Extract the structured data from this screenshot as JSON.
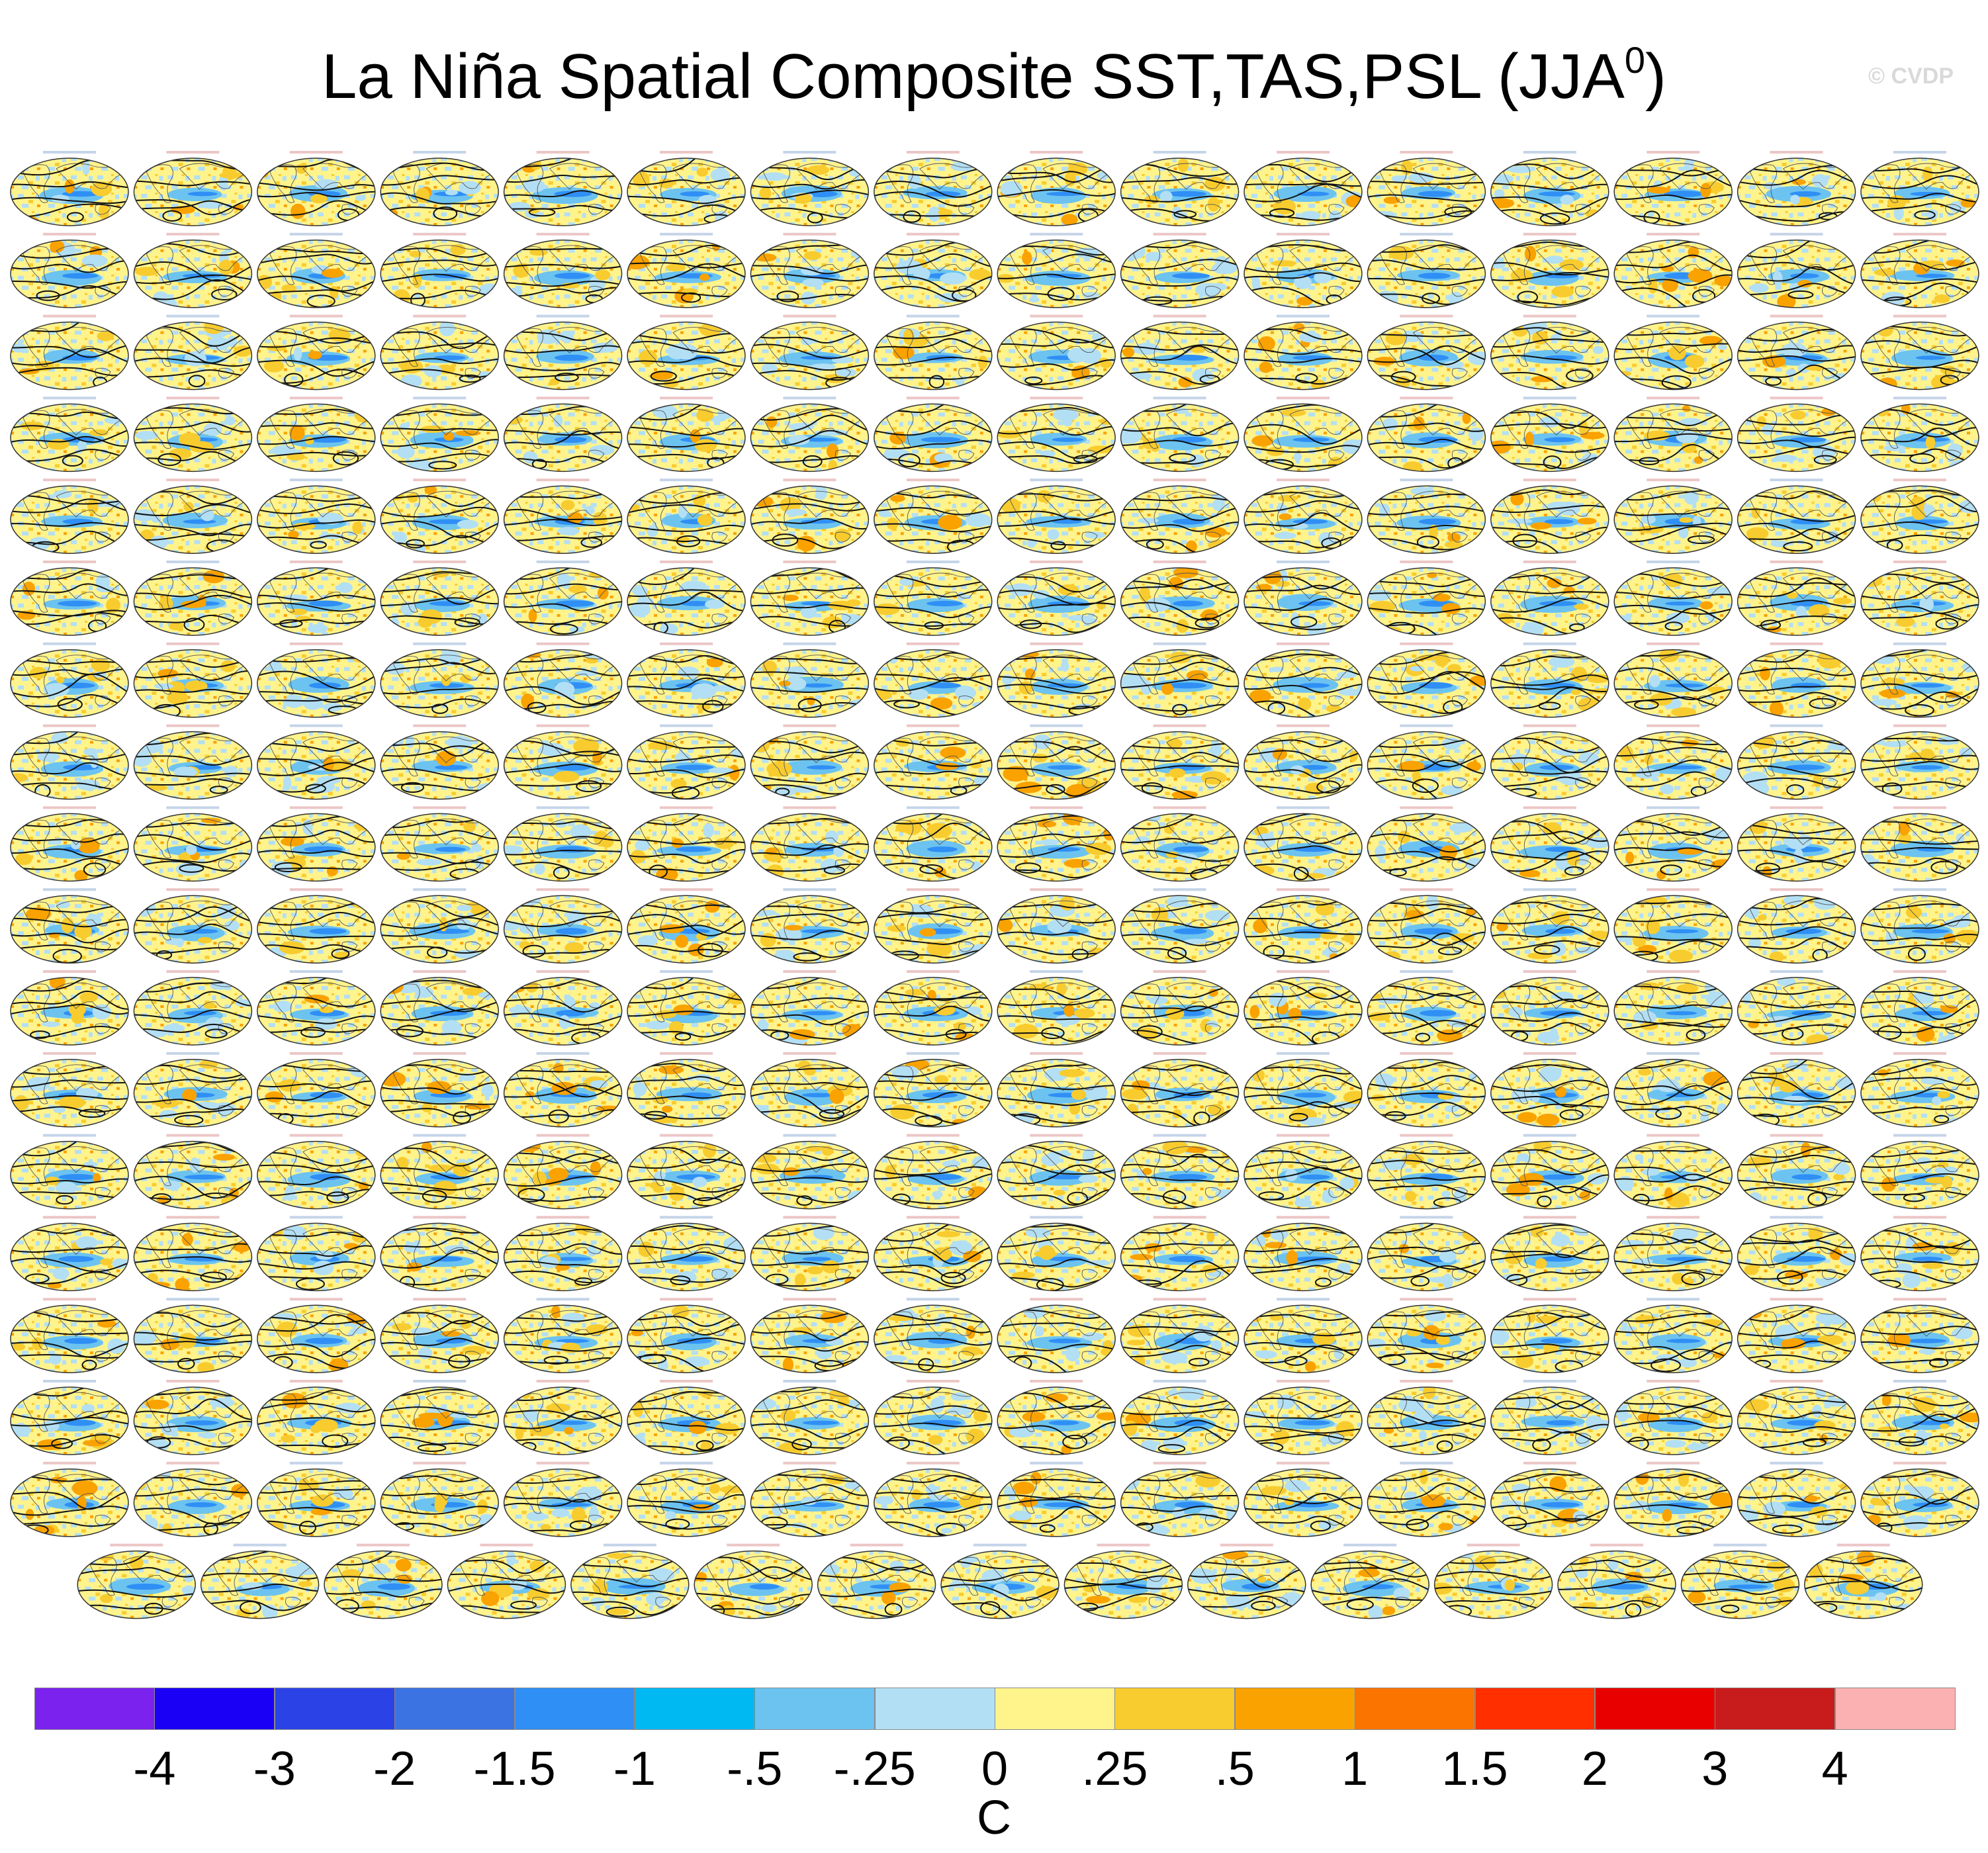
{
  "title_main": "La Niña Spatial Composite SST,TAS,PSL (JJA",
  "title_sup": "0",
  "title_end": ")",
  "watermark": "© CVDP",
  "chart_data": {
    "type": "heatmap",
    "description": "Grid of global map panels (La Niña composites of SST/TAS shaded, PSL contours) for observations and many model ensemble members",
    "panel_layout": {
      "rows": 18,
      "columns": 16,
      "last_row_panels": 15,
      "total_panels": 287
    },
    "colorbar": {
      "labels": [
        "-4",
        "-3",
        "-2",
        "-1.5",
        "-1",
        "-.5",
        "-.25",
        "0",
        ".25",
        ".5",
        "1",
        "1.5",
        "2",
        "3",
        "4"
      ],
      "colors": [
        "#7b22ee",
        "#1a00f5",
        "#2b43e6",
        "#3b73e2",
        "#2f8ff5",
        "#00b9f2",
        "#6cc3f0",
        "#b3dff4",
        "#fff38c",
        "#f8cc2e",
        "#f9a200",
        "#fb7400",
        "#ff2f00",
        "#e80000",
        "#c81b1b",
        "#fbb1b1"
      ],
      "units": "C"
    }
  }
}
